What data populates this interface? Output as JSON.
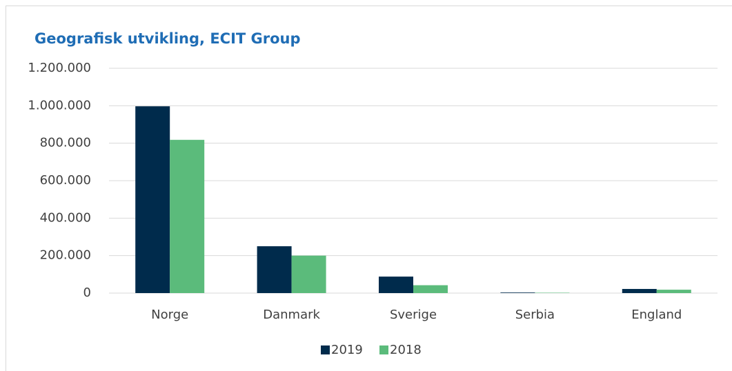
{
  "chart_data": {
    "type": "bar",
    "title": "Geografisk utvikling, ECIT Group",
    "categories": [
      "Norge",
      "Danmark",
      "Sverige",
      "Serbia",
      "England"
    ],
    "series": [
      {
        "name": "2019",
        "color": "#002b4c",
        "values": [
          997000,
          250000,
          88000,
          3000,
          22000
        ]
      },
      {
        "name": "2018",
        "color": "#5bbb7b",
        "values": [
          818000,
          200000,
          42000,
          2000,
          18000
        ]
      }
    ],
    "ylim": [
      0,
      1200000
    ],
    "yticks": [
      0,
      {
        "value": 200000,
        "label": "200.000"
      },
      {
        "value": 400000,
        "label": "400.000"
      },
      {
        "value": 600000,
        "label": "600.000"
      },
      {
        "value": 800000,
        "label": "800.000"
      },
      {
        "value": 1000000,
        "label": "1.000.000"
      },
      {
        "value": 1200000,
        "label": "1.200.000"
      }
    ],
    "grid": true,
    "legend": "bottom"
  }
}
